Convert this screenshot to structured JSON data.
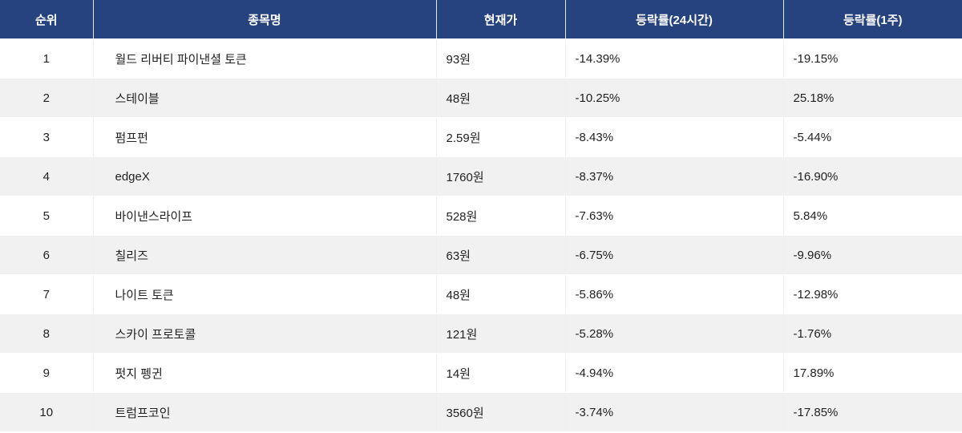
{
  "colors": {
    "header_bg": "#26427f",
    "header_text": "#ffffff",
    "row_alt_bg": "#f1f1f1",
    "row_bg": "#ffffff",
    "text": "#222222"
  },
  "table": {
    "headers": {
      "rank": "순위",
      "name": "종목명",
      "price": "현재가",
      "change_24h": "등락률(24시간)",
      "change_1w": "등락률(1주)"
    },
    "rows": [
      {
        "rank": "1",
        "name": "월드 리버티 파이낸셜 토큰",
        "price": "93원",
        "change_24h": "-14.39%",
        "change_1w": "-19.15%"
      },
      {
        "rank": "2",
        "name": "스테이블",
        "price": "48원",
        "change_24h": "-10.25%",
        "change_1w": "25.18%"
      },
      {
        "rank": "3",
        "name": "펌프펀",
        "price": "2.59원",
        "change_24h": "-8.43%",
        "change_1w": "-5.44%"
      },
      {
        "rank": "4",
        "name": "edgeX",
        "price": "1760원",
        "change_24h": "-8.37%",
        "change_1w": "-16.90%"
      },
      {
        "rank": "5",
        "name": "바이낸스라이프",
        "price": "528원",
        "change_24h": "-7.63%",
        "change_1w": "5.84%"
      },
      {
        "rank": "6",
        "name": "칠리즈",
        "price": "63원",
        "change_24h": "-6.75%",
        "change_1w": "-9.96%"
      },
      {
        "rank": "7",
        "name": "나이트 토큰",
        "price": "48원",
        "change_24h": "-5.86%",
        "change_1w": "-12.98%"
      },
      {
        "rank": "8",
        "name": "스카이 프로토콜",
        "price": "121원",
        "change_24h": "-5.28%",
        "change_1w": "-1.76%"
      },
      {
        "rank": "9",
        "name": "펏지 펭귄",
        "price": "14원",
        "change_24h": "-4.94%",
        "change_1w": "17.89%"
      },
      {
        "rank": "10",
        "name": "트럼프코인",
        "price": "3560원",
        "change_24h": "-3.74%",
        "change_1w": "-17.85%"
      }
    ]
  }
}
